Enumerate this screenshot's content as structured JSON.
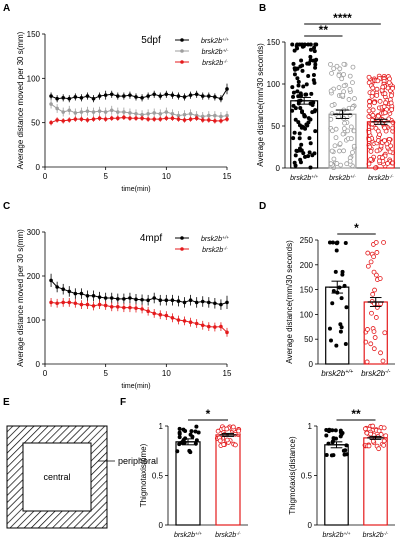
{
  "panels": {
    "A": "A",
    "B": "B",
    "C": "C",
    "D": "D",
    "E": "E",
    "F": "F"
  },
  "schematic": {
    "central_label": "central",
    "peripheral_label": "peripheral"
  },
  "colors": {
    "wt": "#000000",
    "het": "#9e9e9e",
    "mut": "#e41a1c"
  },
  "chart_data": [
    {
      "panel": "A",
      "type": "line",
      "title": "5dpf",
      "xlabel": "time(min)",
      "ylabel": "Average distance moved per 30 s(mm)",
      "xlim": [
        0,
        15
      ],
      "ylim": [
        0,
        150
      ],
      "xticks": [
        0,
        5,
        10,
        15
      ],
      "yticks": [
        0,
        50,
        100,
        150
      ],
      "legend": "top-right",
      "x": [
        0.5,
        1,
        1.5,
        2,
        2.5,
        3,
        3.5,
        4,
        4.5,
        5,
        5.5,
        6,
        6.5,
        7,
        7.5,
        8,
        8.5,
        9,
        9.5,
        10,
        10.5,
        11,
        11.5,
        12,
        12.5,
        13,
        13.5,
        14,
        14.5,
        15
      ],
      "series": [
        {
          "name": "brsk2b+/+",
          "key": "wt",
          "values": [
            80,
            77,
            78,
            77,
            79,
            78,
            80,
            77,
            80,
            81,
            82,
            80,
            80,
            81,
            79,
            78,
            80,
            82,
            80,
            82,
            81,
            80,
            79,
            81,
            82,
            80,
            80,
            79,
            77,
            88
          ],
          "err": [
            4,
            4,
            4,
            4,
            4,
            4,
            4,
            4,
            4,
            5,
            4,
            4,
            4,
            4,
            4,
            4,
            4,
            4,
            4,
            4,
            4,
            4,
            4,
            4,
            4,
            4,
            4,
            4,
            4,
            6
          ]
        },
        {
          "name": "brsk2b+/-",
          "key": "het",
          "values": [
            71,
            66,
            62,
            64,
            61,
            62,
            63,
            62,
            63,
            62,
            64,
            62,
            62,
            61,
            60,
            59,
            60,
            61,
            60,
            62,
            60,
            58,
            59,
            60,
            58,
            57,
            58,
            58,
            57,
            58
          ],
          "err": [
            5,
            5,
            5,
            5,
            5,
            5,
            5,
            5,
            5,
            5,
            5,
            5,
            5,
            5,
            5,
            5,
            5,
            5,
            5,
            5,
            5,
            5,
            5,
            5,
            5,
            5,
            5,
            5,
            5,
            5
          ]
        },
        {
          "name": "brsk2b-/-",
          "key": "mut",
          "values": [
            50,
            53,
            52,
            53,
            54,
            54,
            53,
            54,
            55,
            54,
            55,
            55,
            56,
            55,
            55,
            55,
            54,
            54,
            54,
            55,
            55,
            54,
            53,
            54,
            55,
            53,
            53,
            52,
            52,
            54
          ],
          "err": [
            3,
            3,
            3,
            3,
            3,
            3,
            3,
            3,
            3,
            3,
            3,
            3,
            3,
            3,
            3,
            3,
            3,
            3,
            3,
            3,
            3,
            3,
            3,
            3,
            3,
            3,
            3,
            3,
            3,
            3
          ]
        }
      ]
    },
    {
      "panel": "B",
      "type": "bar",
      "ylabel": "Average distance(mm/30 seconds)",
      "ylim": [
        0,
        150
      ],
      "yticks": [
        0,
        50,
        100,
        150
      ],
      "categories": [
        "brsk2b+/+",
        "brsk2b+/-",
        "brsk2b-/-"
      ],
      "values": [
        80,
        64,
        55
      ],
      "sem": [
        4,
        5,
        3
      ],
      "keys": [
        "wt",
        "het",
        "mut"
      ],
      "dots": [
        112,
        86,
        180
      ],
      "significance": [
        {
          "from": 0,
          "to": 1,
          "label": "**"
        },
        {
          "from": 0,
          "to": 2,
          "label": "****"
        }
      ]
    },
    {
      "panel": "C",
      "type": "line",
      "title": "4mpf",
      "xlabel": "time(min)",
      "ylabel": "Average distance moved per 30 s(mm)",
      "xlim": [
        0,
        15
      ],
      "ylim": [
        0,
        300
      ],
      "xticks": [
        0,
        5,
        10,
        15
      ],
      "yticks": [
        0,
        100,
        200,
        300
      ],
      "legend": "top-right",
      "x": [
        0.5,
        1,
        1.5,
        2,
        2.5,
        3,
        3.5,
        4,
        4.5,
        5,
        5.5,
        6,
        6.5,
        7,
        7.5,
        8,
        8.5,
        9,
        9.5,
        10,
        10.5,
        11,
        11.5,
        12,
        12.5,
        13,
        13.5,
        14,
        14.5,
        15
      ],
      "series": [
        {
          "name": "brsk2b+/+",
          "key": "wt",
          "values": [
            190,
            175,
            170,
            165,
            160,
            160,
            155,
            155,
            152,
            150,
            150,
            148,
            148,
            150,
            147,
            146,
            145,
            150,
            145,
            145,
            145,
            143,
            140,
            145,
            140,
            142,
            140,
            138,
            135,
            140
          ],
          "err": [
            15,
            12,
            12,
            12,
            12,
            12,
            12,
            12,
            12,
            12,
            12,
            12,
            12,
            12,
            12,
            12,
            12,
            12,
            12,
            12,
            12,
            12,
            12,
            12,
            12,
            12,
            12,
            12,
            12,
            15
          ]
        },
        {
          "name": "brsk2b-/-",
          "key": "mut",
          "values": [
            140,
            138,
            140,
            140,
            138,
            135,
            135,
            132,
            135,
            133,
            130,
            130,
            128,
            128,
            127,
            125,
            120,
            115,
            112,
            110,
            105,
            100,
            98,
            95,
            92,
            88,
            85,
            84,
            85,
            72
          ],
          "err": [
            10,
            10,
            10,
            10,
            10,
            10,
            10,
            10,
            10,
            10,
            10,
            10,
            10,
            10,
            10,
            10,
            10,
            10,
            10,
            10,
            10,
            10,
            10,
            10,
            10,
            10,
            10,
            10,
            10,
            10
          ]
        }
      ]
    },
    {
      "panel": "D",
      "type": "bar",
      "ylabel": "Average distance(mm/30 seconds)",
      "ylim": [
        0,
        250
      ],
      "yticks": [
        0,
        50,
        100,
        150,
        200,
        250
      ],
      "categories": [
        "brsk2b+/+",
        "brsk2b-/-"
      ],
      "values": [
        155,
        125
      ],
      "sem": [
        12,
        9
      ],
      "keys": [
        "wt",
        "mut"
      ],
      "dots": [
        24,
        33
      ],
      "significance": [
        {
          "from": 0,
          "to": 1,
          "label": "*"
        }
      ]
    },
    {
      "panel": "F1",
      "type": "bar",
      "ylabel": "Thigmotaxis(time)",
      "ylim": [
        0,
        1.0
      ],
      "yticks": [
        0,
        0.5,
        1.0
      ],
      "categories": [
        "brsk2b+/+",
        "brsk2b-/-"
      ],
      "values": [
        0.84,
        0.91
      ],
      "sem": [
        0.03,
        0.015
      ],
      "keys": [
        "wt",
        "mut"
      ],
      "dots": [
        24,
        33
      ],
      "significance": [
        {
          "from": 0,
          "to": 1,
          "label": "*"
        }
      ]
    },
    {
      "panel": "F2",
      "type": "bar",
      "ylabel": "Thigmotaxis(distance)",
      "ylim": [
        0,
        1.0
      ],
      "yticks": [
        0,
        0.5,
        1.0
      ],
      "categories": [
        "brsk2b+/+",
        "brsk2b-/-"
      ],
      "values": [
        0.81,
        0.88
      ],
      "sem": [
        0.03,
        0.015
      ],
      "keys": [
        "wt",
        "mut"
      ],
      "dots": [
        24,
        33
      ],
      "significance": [
        {
          "from": 0,
          "to": 1,
          "label": "**"
        }
      ]
    }
  ]
}
